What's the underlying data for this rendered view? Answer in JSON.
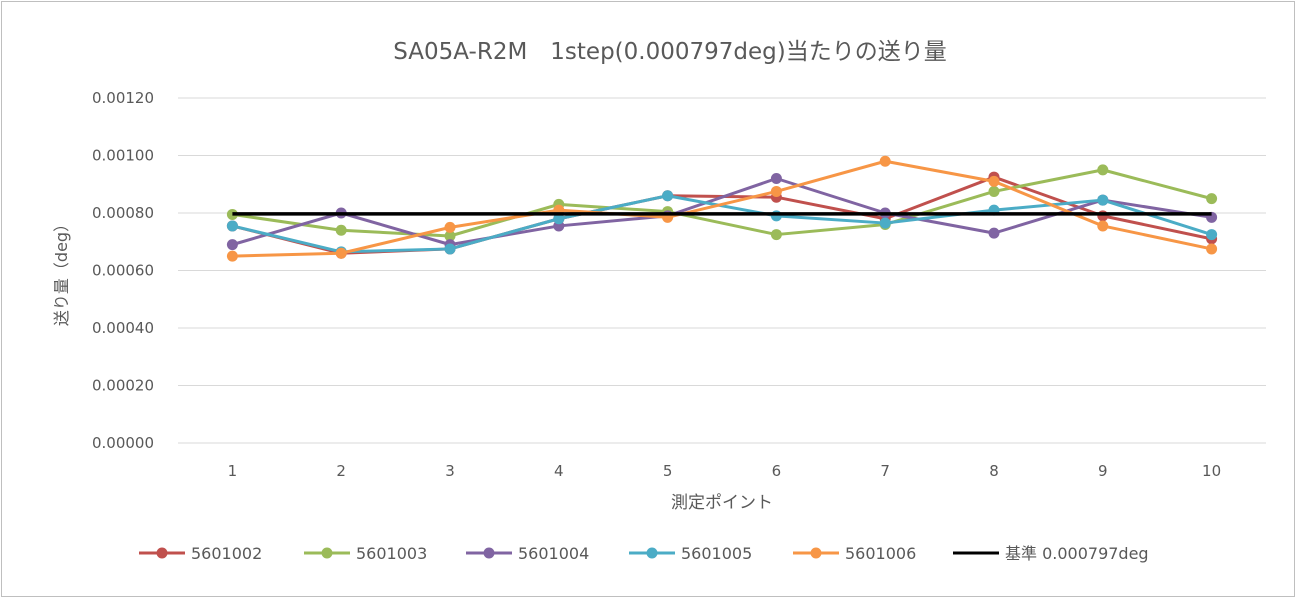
{
  "chart_data": {
    "type": "line",
    "title": "SA05A-R2M　1step(0.000797deg)当たりの送り量",
    "xlabel": "測定ポイント",
    "ylabel": "送り量（deg）",
    "ylim": [
      0,
      0.0012
    ],
    "yticks": [
      "0.00000",
      "0.00020",
      "0.00040",
      "0.00060",
      "0.00080",
      "0.00100",
      "0.00120"
    ],
    "ytick_values": [
      0,
      0.0002,
      0.0004,
      0.0006,
      0.0008,
      0.001,
      0.0012
    ],
    "categories": [
      "1",
      "2",
      "3",
      "4",
      "5",
      "6",
      "7",
      "8",
      "9",
      "10"
    ],
    "grid": true,
    "legend_position": "bottom",
    "series": [
      {
        "name": "5601002",
        "color": "#c0504d",
        "marker": true,
        "values": [
          0.000755,
          0.00066,
          0.000675,
          0.00078,
          0.00086,
          0.000855,
          0.00078,
          0.000925,
          0.00079,
          0.00071
        ]
      },
      {
        "name": "5601003",
        "color": "#9bbb59",
        "marker": true,
        "values": [
          0.000795,
          0.00074,
          0.00072,
          0.00083,
          0.000805,
          0.000725,
          0.00076,
          0.000875,
          0.00095,
          0.00085
        ]
      },
      {
        "name": "5601004",
        "color": "#8064a2",
        "marker": true,
        "values": [
          0.00069,
          0.0008,
          0.00069,
          0.000755,
          0.00079,
          0.00092,
          0.0008,
          0.00073,
          0.000845,
          0.000785
        ]
      },
      {
        "name": "5601005",
        "color": "#4bacc6",
        "marker": true,
        "values": [
          0.000755,
          0.000665,
          0.000675,
          0.00078,
          0.00086,
          0.00079,
          0.000765,
          0.00081,
          0.000845,
          0.000725
        ]
      },
      {
        "name": "5601006",
        "color": "#f79646",
        "marker": true,
        "values": [
          0.00065,
          0.00066,
          0.00075,
          0.00081,
          0.000785,
          0.000875,
          0.00098,
          0.00091,
          0.000755,
          0.000675
        ]
      },
      {
        "name": "基準 0.000797deg",
        "color": "#000000",
        "marker": false,
        "values": [
          0.000797,
          0.000797,
          0.000797,
          0.000797,
          0.000797,
          0.000797,
          0.000797,
          0.000797,
          0.000797,
          0.000797
        ]
      }
    ]
  }
}
